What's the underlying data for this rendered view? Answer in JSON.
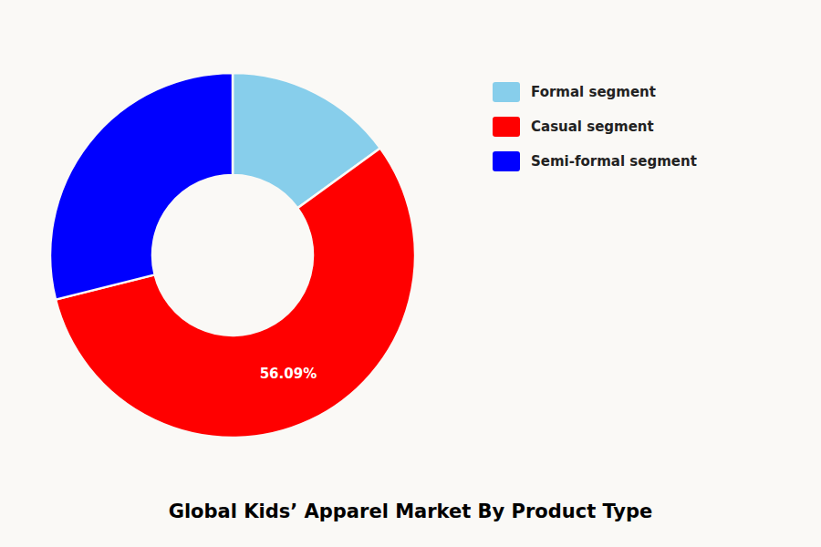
{
  "chart_data": {
    "type": "donut",
    "title": "Global Kids’ Apparel Market By Product Type",
    "categories": [
      "Formal segment",
      "Casual segment",
      "Semi-formal segment"
    ],
    "values": [
      15.0,
      56.09,
      28.91
    ],
    "colors": [
      "#87CEEB",
      "#FF0000",
      "#0000FF"
    ],
    "data_labels": true,
    "value_labels": [
      null,
      "56.09%",
      null
    ],
    "legend": "upper right"
  }
}
